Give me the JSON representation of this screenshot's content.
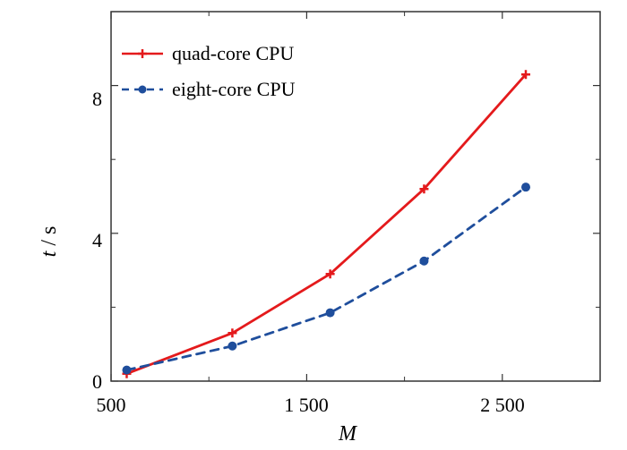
{
  "chart_data": {
    "type": "line",
    "title": "",
    "xlabel": "M",
    "ylabel_italic": "t",
    "ylabel_unit": " / s",
    "xlim": [
      500,
      3000
    ],
    "ylim": [
      0,
      10
    ],
    "xticks": [
      500,
      1500,
      2500
    ],
    "xtick_labels": [
      "500",
      "1 500",
      "2 500"
    ],
    "yticks": [
      0,
      4,
      8
    ],
    "ytick_labels": [
      "0",
      "4",
      "8"
    ],
    "minor_xticks": [
      1000,
      2000
    ],
    "minor_yticks": [
      2,
      6
    ],
    "grid": false,
    "legend_position": "top-left",
    "series": [
      {
        "name": "quad-core CPU",
        "color": "#e41a1c",
        "line": "solid",
        "marker": "plus",
        "x": [
          580,
          1120,
          1620,
          2100,
          2620
        ],
        "y": [
          0.2,
          1.3,
          2.9,
          5.2,
          8.3
        ]
      },
      {
        "name": "eight-core CPU",
        "color": "#1f4e9c",
        "line": "dashed",
        "marker": "circle",
        "x": [
          580,
          1120,
          1620,
          2100,
          2620
        ],
        "y": [
          0.3,
          0.95,
          1.85,
          3.25,
          5.25
        ]
      }
    ]
  }
}
